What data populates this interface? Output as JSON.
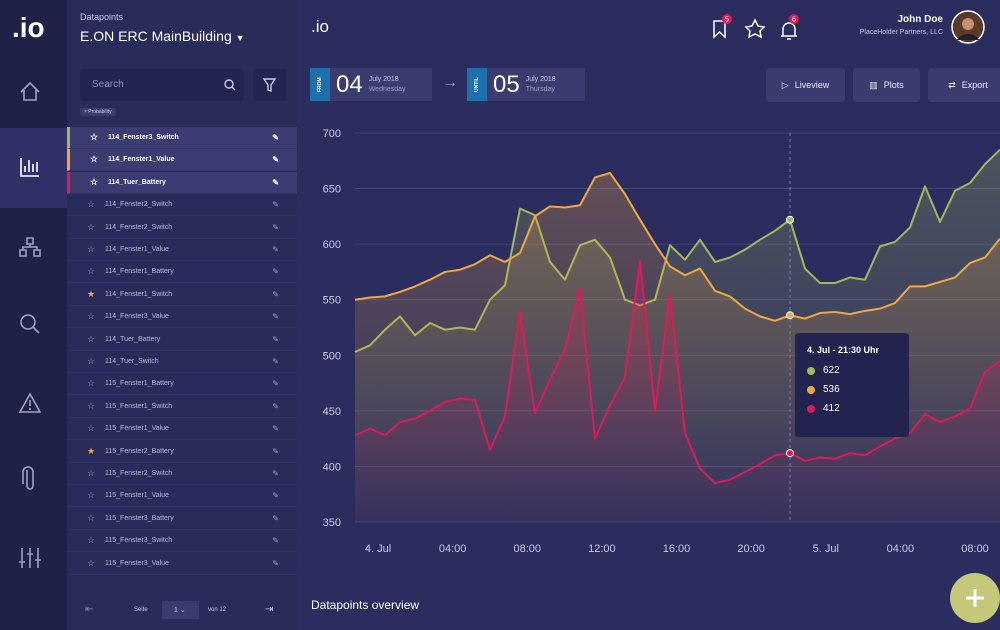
{
  "app": {
    "logo": ".io",
    "header_logo": ".io"
  },
  "sidebar": {
    "label": "Datapoints",
    "building": "E.ON ERC MainBuilding",
    "search_placeholder": "Search",
    "filter_chip": "× Probability",
    "items": [
      {
        "name": "114_Fenster3_Switch",
        "favorite": false,
        "color": "#a5b85b"
      },
      {
        "name": "114_Fenster1_Value",
        "favorite": false,
        "color": "#f0a840"
      },
      {
        "name": "114_Tuer_Battery",
        "favorite": false,
        "color": "#e0195a"
      },
      {
        "name": "114_Fenster2_Switch",
        "favorite": false
      },
      {
        "name": "114_Fenster2_Switch",
        "favorite": false
      },
      {
        "name": "114_Fenster1_Value",
        "favorite": false
      },
      {
        "name": "114_Fenster1_Battery",
        "favorite": false
      },
      {
        "name": "114_Fenster1_Switch",
        "favorite": true
      },
      {
        "name": "114_Fenster3_Value",
        "favorite": false
      },
      {
        "name": "114_Tuer_Battery",
        "favorite": false
      },
      {
        "name": "114_Tuer_Switch",
        "favorite": false
      },
      {
        "name": "115_Fenster1_Battery",
        "favorite": false
      },
      {
        "name": "115_Fenster1_Switch",
        "favorite": false
      },
      {
        "name": "115_Fenster1_Value",
        "favorite": false
      },
      {
        "name": "115_Fenster2_Battery",
        "favorite": true
      },
      {
        "name": "115_Fenster2_Switch",
        "favorite": false
      },
      {
        "name": "115_Fenster1_Value",
        "favorite": false
      },
      {
        "name": "115_Fenster3_Battery",
        "favorite": false
      },
      {
        "name": "115_Fenster3_Switch",
        "favorite": false
      },
      {
        "name": "115_Fenster3_Value",
        "favorite": false
      }
    ],
    "pagination": {
      "page_label": "Seite",
      "page": "1",
      "of": "von 12"
    }
  },
  "topbar": {
    "badges": [
      "5",
      "6"
    ],
    "user_name": "John Doe",
    "company": "PlaceHolder Partners, LLC"
  },
  "range": {
    "from": {
      "tag": "FROM",
      "day": "04",
      "month": "July 2018",
      "weekday": "Wednesday"
    },
    "until": {
      "tag": "UNTIL",
      "day": "05",
      "month": "July 2018",
      "weekday": "Thursday"
    }
  },
  "buttons": [
    "Liveview",
    "Plots",
    "Export"
  ],
  "chart_data": {
    "type": "line",
    "xtick_labels": [
      "4. Jul",
      "04:00",
      "08:00",
      "12:00",
      "16:00",
      "20:00",
      "5. Jul",
      "04:00",
      "08:00"
    ],
    "ylim": [
      350,
      700
    ],
    "yticks": [
      350,
      400,
      450,
      500,
      550,
      600,
      650,
      700
    ],
    "grid": true,
    "series": [
      {
        "name": "114_Fenster3_Switch",
        "color": "#a5b85b",
        "values": [
          503,
          509,
          523,
          535,
          518,
          529,
          523,
          525,
          523,
          550,
          563,
          632,
          626,
          584,
          568,
          599,
          604,
          588,
          550,
          545,
          550,
          599,
          586,
          604,
          584,
          588,
          595,
          604,
          612,
          622,
          578,
          565,
          565,
          570,
          568,
          598,
          602,
          615,
          652,
          620,
          648,
          655,
          672,
          685
        ]
      },
      {
        "name": "114_Fenster1_Value",
        "color": "#f0a840",
        "values": [
          550,
          552,
          553,
          557,
          562,
          568,
          575,
          577,
          582,
          590,
          584,
          592,
          625,
          634,
          633,
          635,
          660,
          664,
          645,
          622,
          600,
          580,
          572,
          578,
          558,
          553,
          542,
          535,
          531,
          536,
          533,
          538,
          539,
          537,
          540,
          542,
          547,
          562,
          562,
          566,
          570,
          583,
          588,
          605
        ]
      },
      {
        "name": "114_Tuer_Battery",
        "color": "#e0195a",
        "values": [
          428,
          434,
          428,
          440,
          443,
          450,
          458,
          461,
          460,
          415,
          445,
          540,
          448,
          478,
          505,
          560,
          425,
          455,
          480,
          585,
          450,
          555,
          430,
          398,
          385,
          388,
          395,
          402,
          410,
          412,
          405,
          408,
          407,
          412,
          410,
          418,
          425,
          430,
          447,
          440,
          445,
          452,
          485,
          495
        ]
      }
    ],
    "tooltip": {
      "title": "4. Jul - 21:30 Uhr"
    }
  },
  "footer": {
    "title": "Datapoints overview"
  }
}
